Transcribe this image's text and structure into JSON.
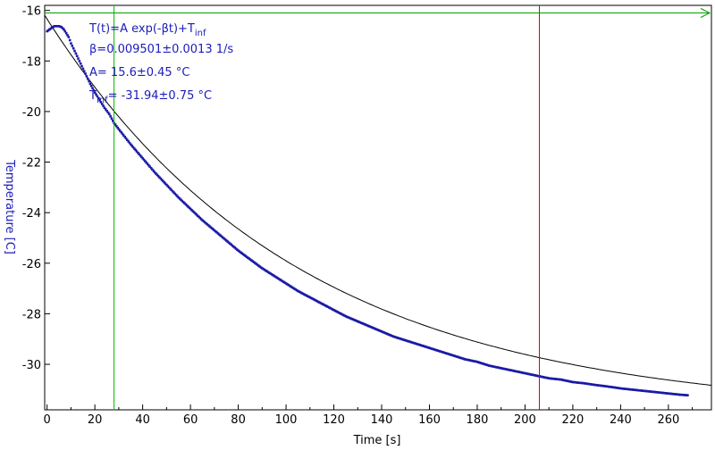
{
  "chart_data": {
    "type": "scatter",
    "xlabel": "Time [s]",
    "ylabel": "Temperature [C]",
    "xlim": [
      -1,
      278
    ],
    "ylim": [
      -31.8,
      -15.8
    ],
    "x_ticks": [
      0,
      20,
      40,
      60,
      80,
      100,
      120,
      140,
      160,
      180,
      200,
      220,
      240,
      260
    ],
    "y_ticks": [
      -16,
      -18,
      -20,
      -22,
      -24,
      -26,
      -28,
      -30
    ],
    "grid": false,
    "cursors": {
      "green_x": 28,
      "red_x": 206,
      "arrow_y": -16.1
    },
    "fit": {
      "formula_main": "T(t)=A exp(-βt)+T",
      "formula_sub": "inf",
      "beta": "β=0.009501±0.0013 1/s",
      "A": "A= 15.6±0.45 °C",
      "tinf_main": "T",
      "tinf_sub": "inf",
      "tinf_value": "= -31.94±0.75 °C",
      "beta_value": 0.009501,
      "A_value": 15.6,
      "tinf": -31.94
    },
    "series": [
      {
        "x": [
          0,
          1,
          2,
          3,
          4,
          5,
          6,
          7,
          8,
          9,
          10,
          12,
          14,
          16,
          18,
          20,
          22,
          24,
          26,
          28,
          30,
          35,
          40,
          45,
          50,
          55,
          60,
          65,
          70,
          75,
          80,
          85,
          90,
          95,
          100,
          105,
          110,
          115,
          120,
          125,
          130,
          135,
          140,
          145,
          150,
          155,
          160,
          165,
          170,
          175,
          180,
          185,
          190,
          195,
          200,
          205,
          210,
          215,
          220,
          225,
          230,
          235,
          240,
          245,
          250,
          255,
          260,
          265,
          268
        ],
        "y": [
          -16.82,
          -16.75,
          -16.68,
          -16.62,
          -16.62,
          -16.62,
          -16.66,
          -16.75,
          -16.9,
          -17.05,
          -17.3,
          -17.7,
          -18.1,
          -18.5,
          -18.9,
          -19.25,
          -19.55,
          -19.85,
          -20.1,
          -20.45,
          -20.7,
          -21.3,
          -21.85,
          -22.4,
          -22.9,
          -23.4,
          -23.85,
          -24.3,
          -24.7,
          -25.1,
          -25.5,
          -25.85,
          -26.2,
          -26.5,
          -26.8,
          -27.1,
          -27.35,
          -27.6,
          -27.85,
          -28.1,
          -28.3,
          -28.5,
          -28.7,
          -28.9,
          -29.05,
          -29.2,
          -29.35,
          -29.5,
          -29.65,
          -29.8,
          -29.9,
          -30.05,
          -30.15,
          -30.25,
          -30.35,
          -30.45,
          -30.55,
          -30.6,
          -30.7,
          -30.75,
          -30.82,
          -30.88,
          -30.95,
          -31.0,
          -31.05,
          -31.1,
          -31.15,
          -31.2,
          -31.22
        ]
      }
    ]
  }
}
